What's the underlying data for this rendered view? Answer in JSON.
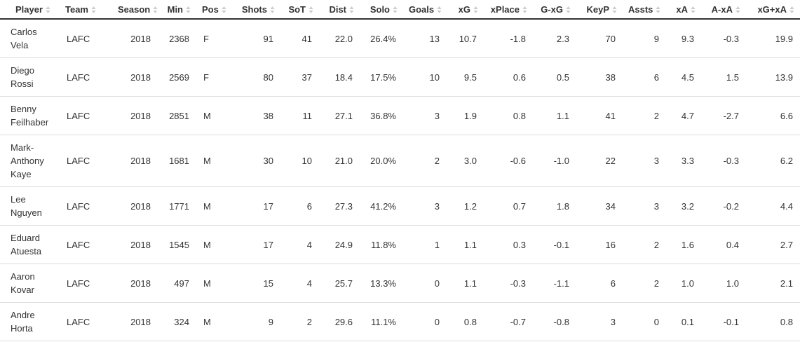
{
  "table": {
    "headers": [
      "Player",
      "Team",
      "Season",
      "Min",
      "Pos",
      "Shots",
      "SoT",
      "Dist",
      "Solo",
      "Goals",
      "xG",
      "xPlace",
      "G-xG",
      "KeyP",
      "Assts",
      "xA",
      "A-xA",
      "xG+xA"
    ],
    "rows": [
      [
        "Carlos Vela",
        "LAFC",
        "2018",
        "2368",
        "F",
        "91",
        "41",
        "22.0",
        "26.4%",
        "13",
        "10.7",
        "-1.8",
        "2.3",
        "70",
        "9",
        "9.3",
        "-0.3",
        "19.9"
      ],
      [
        "Diego Rossi",
        "LAFC",
        "2018",
        "2569",
        "F",
        "80",
        "37",
        "18.4",
        "17.5%",
        "10",
        "9.5",
        "0.6",
        "0.5",
        "38",
        "6",
        "4.5",
        "1.5",
        "13.9"
      ],
      [
        "Benny Feilhaber",
        "LAFC",
        "2018",
        "2851",
        "M",
        "38",
        "11",
        "27.1",
        "36.8%",
        "3",
        "1.9",
        "0.8",
        "1.1",
        "41",
        "2",
        "4.7",
        "-2.7",
        "6.6"
      ],
      [
        "Mark-Anthony Kaye",
        "LAFC",
        "2018",
        "1681",
        "M",
        "30",
        "10",
        "21.0",
        "20.0%",
        "2",
        "3.0",
        "-0.6",
        "-1.0",
        "22",
        "3",
        "3.3",
        "-0.3",
        "6.2"
      ],
      [
        "Lee Nguyen",
        "LAFC",
        "2018",
        "1771",
        "M",
        "17",
        "6",
        "27.3",
        "41.2%",
        "3",
        "1.2",
        "0.7",
        "1.8",
        "34",
        "3",
        "3.2",
        "-0.2",
        "4.4"
      ],
      [
        "Eduard Atuesta",
        "LAFC",
        "2018",
        "1545",
        "M",
        "17",
        "4",
        "24.9",
        "11.8%",
        "1",
        "1.1",
        "0.3",
        "-0.1",
        "16",
        "2",
        "1.6",
        "0.4",
        "2.7"
      ],
      [
        "Aaron Kovar",
        "LAFC",
        "2018",
        "497",
        "M",
        "15",
        "4",
        "25.7",
        "13.3%",
        "0",
        "1.1",
        "-0.3",
        "-1.1",
        "6",
        "2",
        "1.0",
        "1.0",
        "2.1"
      ],
      [
        "Andre Horta",
        "LAFC",
        "2018",
        "324",
        "M",
        "9",
        "2",
        "29.6",
        "11.1%",
        "0",
        "0.8",
        "-0.7",
        "-0.8",
        "3",
        "0",
        "0.1",
        "-0.1",
        "0.8"
      ]
    ]
  }
}
